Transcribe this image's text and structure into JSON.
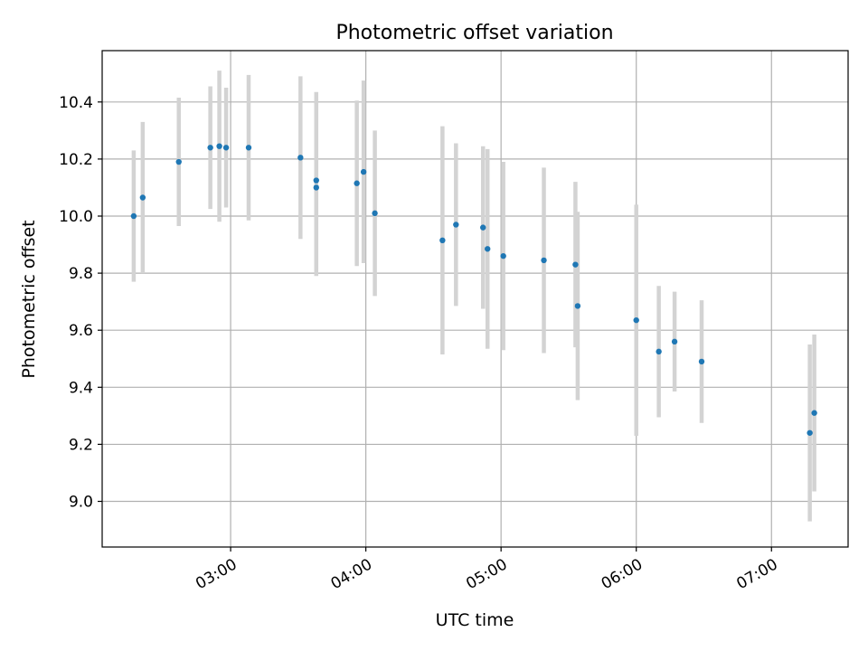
{
  "chart_data": {
    "type": "scatter",
    "title": "Photometric offset variation",
    "xlabel": "UTC time",
    "ylabel": "Photometric offset",
    "x_is_time": true,
    "xlim": [
      "02:03",
      "07:34"
    ],
    "ylim": [
      8.84,
      10.58
    ],
    "xticks": [
      "03:00",
      "04:00",
      "05:00",
      "06:00",
      "07:00"
    ],
    "yticks": [
      9.0,
      9.2,
      9.4,
      9.6,
      9.8,
      10.0,
      10.2,
      10.4
    ],
    "ytick_labels": [
      "9.0",
      "9.2",
      "9.4",
      "9.6",
      "9.8",
      "10.0",
      "10.2",
      "10.4"
    ],
    "grid": true,
    "colors": {
      "point": "#1f77b4",
      "errorbar": "#d3d3d3",
      "grid": "#b0b0b0"
    },
    "points": [
      {
        "x": "02:17",
        "y": 10.0,
        "err": 0.23
      },
      {
        "x": "02:21",
        "y": 10.065,
        "err": 0.265
      },
      {
        "x": "02:37",
        "y": 10.19,
        "err": 0.225
      },
      {
        "x": "02:51",
        "y": 10.24,
        "err": 0.215
      },
      {
        "x": "02:55",
        "y": 10.245,
        "err": 0.265
      },
      {
        "x": "02:58",
        "y": 10.24,
        "err": 0.21
      },
      {
        "x": "03:08",
        "y": 10.24,
        "err": 0.255
      },
      {
        "x": "03:31",
        "y": 10.205,
        "err": 0.285
      },
      {
        "x": "03:38",
        "y": 10.125,
        "err": 0.31
      },
      {
        "x": "03:38",
        "y": 10.1,
        "err": 0.31
      },
      {
        "x": "03:56",
        "y": 10.115,
        "err": 0.29
      },
      {
        "x": "03:59",
        "y": 10.155,
        "err": 0.32
      },
      {
        "x": "04:04",
        "y": 10.01,
        "err": 0.29
      },
      {
        "x": "04:34",
        "y": 9.915,
        "err": 0.4
      },
      {
        "x": "04:40",
        "y": 9.97,
        "err": 0.285
      },
      {
        "x": "04:52",
        "y": 9.96,
        "err": 0.285
      },
      {
        "x": "04:54",
        "y": 9.885,
        "err": 0.35
      },
      {
        "x": "05:01",
        "y": 9.86,
        "err": 0.33
      },
      {
        "x": "05:19",
        "y": 9.845,
        "err": 0.325
      },
      {
        "x": "05:33",
        "y": 9.83,
        "err": 0.29
      },
      {
        "x": "05:34",
        "y": 9.685,
        "err": 0.33
      },
      {
        "x": "06:00",
        "y": 9.635,
        "err": 0.405
      },
      {
        "x": "06:10",
        "y": 9.525,
        "err": 0.23
      },
      {
        "x": "06:17",
        "y": 9.56,
        "err": 0.175
      },
      {
        "x": "06:29",
        "y": 9.49,
        "err": 0.215
      },
      {
        "x": "07:17",
        "y": 9.24,
        "err": 0.31
      },
      {
        "x": "07:19",
        "y": 9.31,
        "err": 0.275
      }
    ]
  }
}
